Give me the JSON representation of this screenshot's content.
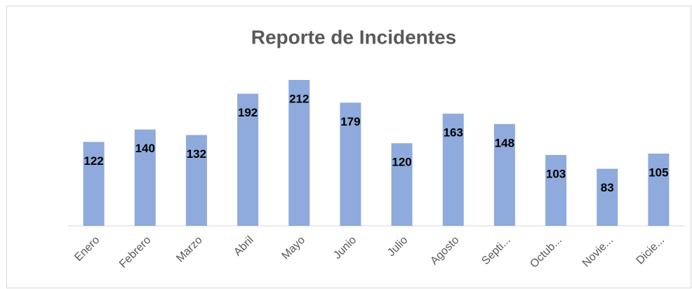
{
  "chart_data": {
    "type": "bar",
    "title": "Reporte de Incidentes",
    "categories": [
      "Enero",
      "Febrero",
      "Marzo",
      "Abril",
      "Mayo",
      "Junio",
      "Julio",
      "Agosto",
      "Septi...",
      "Octub...",
      "Novie...",
      "Dicie..."
    ],
    "values": [
      122,
      140,
      132,
      192,
      212,
      179,
      120,
      163,
      148,
      103,
      83,
      105
    ],
    "color": "#8faadc"
  }
}
